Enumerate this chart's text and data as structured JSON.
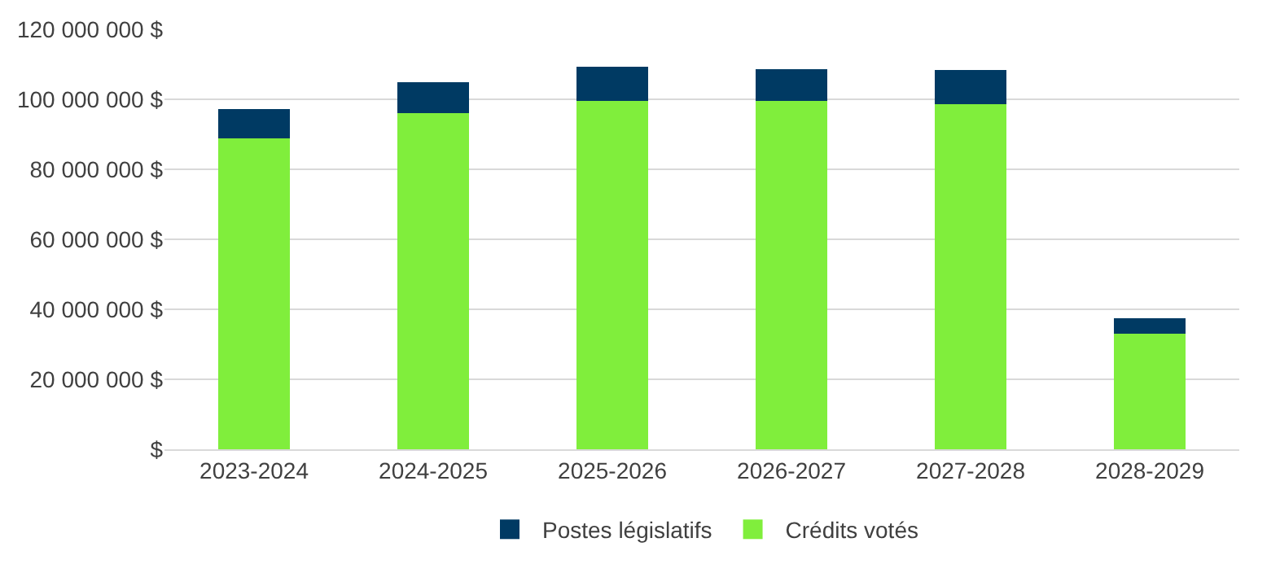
{
  "chart_data": {
    "type": "bar",
    "stacked": true,
    "categories": [
      "2023-2024",
      "2024-2025",
      "2025-2026",
      "2026-2027",
      "2027-2028",
      "2028-2029"
    ],
    "series": [
      {
        "name": "Crédits votés",
        "color": "#80ee3c",
        "values": [
          88800000,
          96100000,
          99500000,
          99500000,
          98500000,
          33000000
        ]
      },
      {
        "name": "Postes législatifs",
        "color": "#003a63",
        "values": [
          8300000,
          8800000,
          9700000,
          9200000,
          9800000,
          4400000
        ]
      }
    ],
    "ylim": [
      0,
      120000000
    ],
    "yticks": [
      {
        "value": 0,
        "label": "$"
      },
      {
        "value": 20000000,
        "label": "20 000 000 $"
      },
      {
        "value": 40000000,
        "label": "40 000 000 $"
      },
      {
        "value": 60000000,
        "label": "60 000 000 $"
      },
      {
        "value": 80000000,
        "label": "80 000 000 $"
      },
      {
        "value": 100000000,
        "label": "100 000 000 $"
      },
      {
        "value": 120000000,
        "label": "120 000 000 $"
      }
    ],
    "grid": "y",
    "legend": "bottom"
  }
}
